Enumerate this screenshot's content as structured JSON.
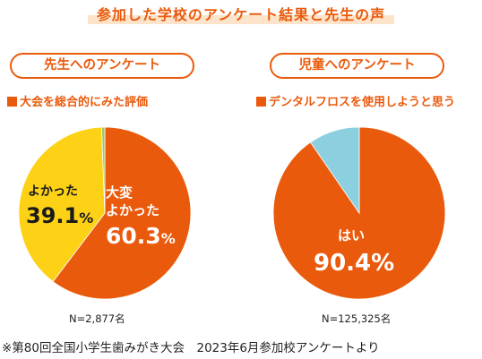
{
  "title": "参加した学校のアンケート結果と先生の声",
  "charts": {
    "left": {
      "pill": "先生へのアンケート",
      "subtitle": "大会を総合的にみた評価",
      "n": "N=2,877名",
      "label_a_line1": "よかった",
      "label_a_value": "39.1",
      "label_b_line1": "大変",
      "label_b_line2": "よかった",
      "label_b_value": "60.3",
      "pct": "%"
    },
    "right": {
      "pill": "児童へのアンケート",
      "subtitle": "デンタルフロスを使用しようと思う",
      "n": "N=125,325名",
      "label_a_line1": "はい",
      "label_a_value": "90.4",
      "pct": "%"
    }
  },
  "footnote": "※第80回全国小学生歯みがき大会　2023年6月参加校アンケートより",
  "colors": {
    "orange": "#ea5a0c",
    "yellow": "#fcd116",
    "light_blue": "#8ccfdf",
    "green": "#a9c25a",
    "white": "#ffffff"
  },
  "chart_data": [
    {
      "type": "pie",
      "title": "大会を総合的にみた評価",
      "slices": [
        {
          "label": "大変よかった",
          "value": 60.3,
          "color": "#ea5a0c"
        },
        {
          "label": "よかった",
          "value": 39.1,
          "color": "#fcd116"
        },
        {
          "label": "",
          "value": 0.6,
          "color": "#a9c25a"
        }
      ]
    },
    {
      "type": "pie",
      "title": "デンタルフロスを使用しようと思う",
      "slices": [
        {
          "label": "はい",
          "value": 90.4,
          "color": "#ea5a0c"
        },
        {
          "label": "",
          "value": 9.6,
          "color": "#8ccfdf"
        }
      ]
    }
  ]
}
